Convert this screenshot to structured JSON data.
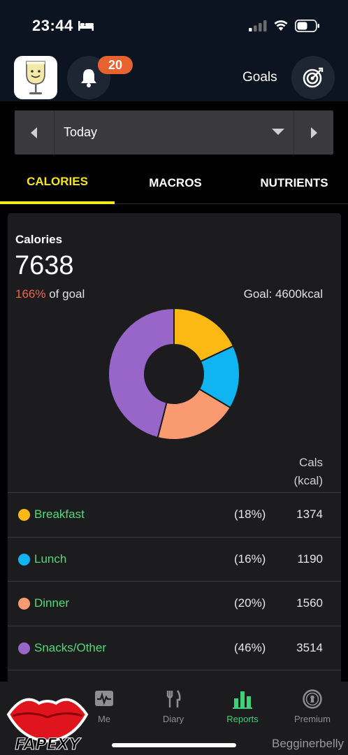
{
  "status": {
    "time": "23:44"
  },
  "header": {
    "notification_count": "20",
    "goals_label": "Goals"
  },
  "date_selector": {
    "value": "Today"
  },
  "tabs": [
    {
      "label": "CALORIES",
      "active": true
    },
    {
      "label": "MACROS",
      "active": false
    },
    {
      "label": "NUTRIENTS",
      "active": false
    }
  ],
  "summary": {
    "title": "Calories",
    "total": "7638",
    "percent_of_goal": "166%",
    "percent_suffix": " of goal",
    "goal_text": "Goal: 4600kcal"
  },
  "table": {
    "col_head_line1": "Cals",
    "col_head_line2": "(kcal)"
  },
  "chart_data": {
    "type": "pie",
    "categories": [
      "Breakfast",
      "Lunch",
      "Dinner",
      "Snacks/Other"
    ],
    "values": [
      1374,
      1190,
      1560,
      3514
    ],
    "percents": [
      "(18%)",
      "(16%)",
      "(20%)",
      "(46%)"
    ],
    "colors": [
      "#fdb913",
      "#0fb4f0",
      "#f99a70",
      "#9766c8"
    ],
    "title": "",
    "legend": "below"
  },
  "rows": [
    {
      "name": "Breakfast",
      "pct": "(18%)",
      "cals": "1374",
      "color": "#fdb913"
    },
    {
      "name": "Lunch",
      "pct": "(16%)",
      "cals": "1190",
      "color": "#0fb4f0"
    },
    {
      "name": "Dinner",
      "pct": "(20%)",
      "cals": "1560",
      "color": "#f99a70"
    },
    {
      "name": "Snacks/Other",
      "pct": "(46%)",
      "cals": "3514",
      "color": "#9766c8"
    }
  ],
  "nav": [
    {
      "label": "Me",
      "icon": "heart-pulse-icon",
      "active": false
    },
    {
      "label": "Diary",
      "icon": "fork-knife-icon",
      "active": false
    },
    {
      "label": "Reports",
      "icon": "bar-chart-icon",
      "active": true
    },
    {
      "label": "Premium",
      "icon": "keyhole-icon",
      "active": false
    }
  ],
  "watermark": {
    "logo_text": "FAPEXY",
    "credit": "Begginerbelly"
  }
}
